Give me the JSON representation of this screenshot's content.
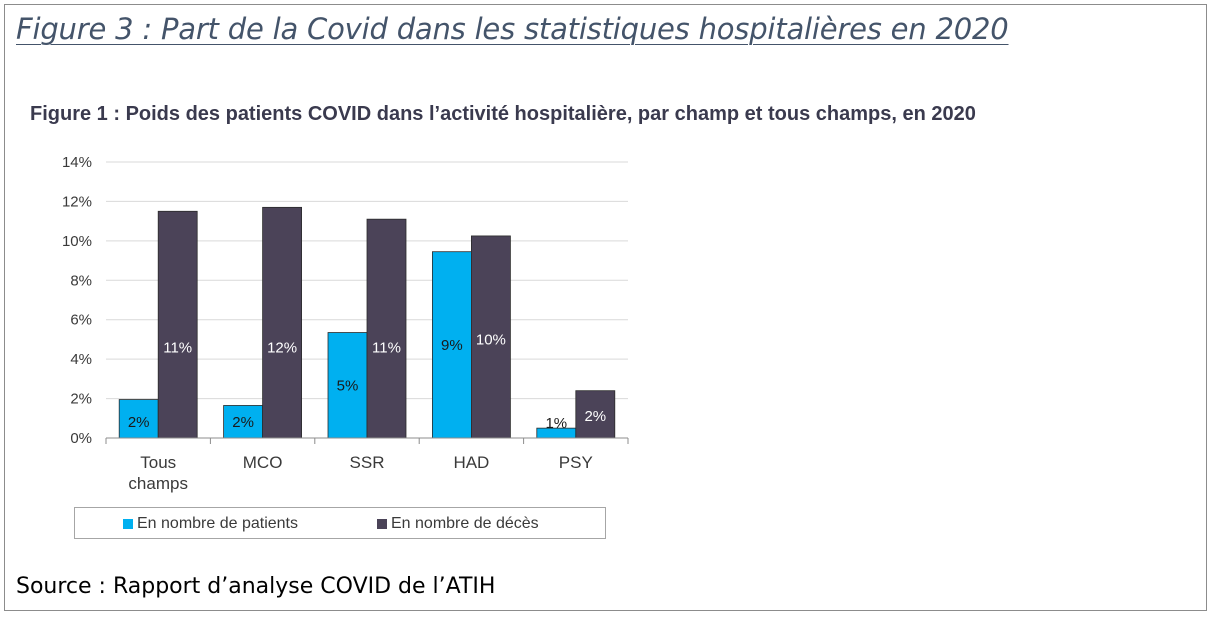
{
  "figure_title": "Figure 3 : Part de la Covid dans les statistiques hospitalières en 2020",
  "source": "Source : Rapport d’analyse COVID de l’ATIH",
  "chart_data": {
    "type": "bar",
    "title": "Figure 1 : Poids des patients COVID dans l’activité hospitalière, par champ et tous champs, en 2020",
    "categories": [
      [
        "Tous",
        "champs"
      ],
      [
        "MCO"
      ],
      [
        "SSR"
      ],
      [
        "HAD"
      ],
      [
        "PSY"
      ]
    ],
    "ylim": [
      0,
      14
    ],
    "yticks": [
      0,
      2,
      4,
      6,
      8,
      10,
      12,
      14
    ],
    "ytick_labels": [
      "0%",
      "2%",
      "4%",
      "6%",
      "8%",
      "10%",
      "12%",
      "14%"
    ],
    "grid": true,
    "legend_position": "bottom",
    "series": [
      {
        "name": "En nombre de patients",
        "color": "#00b0f0",
        "values": [
          1.95,
          1.65,
          5.35,
          9.45,
          0.5
        ],
        "labels": [
          "2%",
          "2%",
          "5%",
          "9%",
          "1%"
        ]
      },
      {
        "name": "En nombre de décès",
        "color": "#4b4358",
        "values": [
          11.5,
          11.7,
          11.1,
          10.25,
          2.4
        ],
        "labels": [
          "11%",
          "12%",
          "11%",
          "10%",
          "2%"
        ]
      }
    ]
  }
}
